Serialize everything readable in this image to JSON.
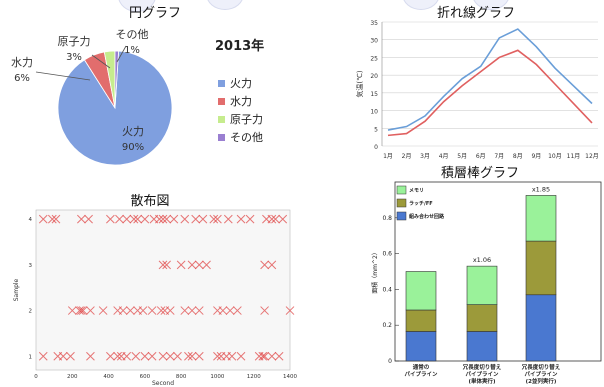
{
  "charts": {
    "pie": {
      "type": "pie",
      "title": "円グラフ",
      "year_label": "2013年",
      "slices": [
        {
          "label": "火力",
          "value": 90,
          "pct_label": "90%",
          "color": "#7f9fdf"
        },
        {
          "label": "水力",
          "value": 6,
          "pct_label": "6%",
          "color": "#e26d6d"
        },
        {
          "label": "原子力",
          "value": 3,
          "pct_label": "3%",
          "color": "#c6ec8e"
        },
        {
          "label": "その他",
          "value": 1,
          "pct_label": "1%",
          "color": "#9a7fd1"
        }
      ]
    },
    "line": {
      "type": "line",
      "title": "折れ線グラフ",
      "ylabel": "気温(℃)",
      "ylim": [
        0,
        35
      ],
      "yticks": [
        0,
        5,
        10,
        15,
        20,
        25,
        30,
        35
      ],
      "categories": [
        "1月",
        "2月",
        "3月",
        "4月",
        "5月",
        "6月",
        "7月",
        "8月",
        "9月",
        "10月",
        "11月",
        "12月"
      ],
      "series": [
        {
          "color": "#6a9ed8",
          "values": [
            4.5,
            5.5,
            8.5,
            14,
            19,
            22.5,
            30.5,
            33,
            28,
            22,
            17,
            12
          ]
        },
        {
          "color": "#e06060",
          "values": [
            3,
            3.5,
            7,
            12.5,
            17,
            21,
            25,
            27,
            23,
            17.5,
            12,
            6.5
          ]
        }
      ]
    },
    "scatter": {
      "type": "scatter",
      "title": "散布図",
      "xlabel": "Second",
      "ylabel": "Sample",
      "xlim": [
        0,
        1400
      ],
      "ylim": [
        0.7,
        4.2
      ],
      "xticks": [
        0,
        200,
        400,
        600,
        800,
        1000,
        1200,
        1400
      ],
      "yticks": [
        1,
        2,
        3,
        4
      ],
      "color": "#e04848",
      "points": [
        [
          40,
          4
        ],
        [
          90,
          4
        ],
        [
          110,
          4
        ],
        [
          250,
          4
        ],
        [
          290,
          4
        ],
        [
          410,
          4
        ],
        [
          460,
          4
        ],
        [
          500,
          4
        ],
        [
          540,
          4
        ],
        [
          560,
          4
        ],
        [
          600,
          4
        ],
        [
          650,
          4
        ],
        [
          680,
          4
        ],
        [
          700,
          4
        ],
        [
          720,
          4
        ],
        [
          760,
          4
        ],
        [
          820,
          4
        ],
        [
          880,
          4
        ],
        [
          920,
          4
        ],
        [
          980,
          4
        ],
        [
          1000,
          4
        ],
        [
          1060,
          4
        ],
        [
          1130,
          4
        ],
        [
          1180,
          4
        ],
        [
          1270,
          4
        ],
        [
          1300,
          4
        ],
        [
          1320,
          4
        ],
        [
          1360,
          4
        ],
        [
          700,
          3
        ],
        [
          720,
          3
        ],
        [
          800,
          3
        ],
        [
          860,
          3
        ],
        [
          900,
          3
        ],
        [
          940,
          3
        ],
        [
          1260,
          3
        ],
        [
          1300,
          3
        ],
        [
          200,
          2
        ],
        [
          240,
          2
        ],
        [
          250,
          2
        ],
        [
          260,
          2
        ],
        [
          300,
          2
        ],
        [
          370,
          2
        ],
        [
          450,
          2
        ],
        [
          480,
          2
        ],
        [
          520,
          2
        ],
        [
          560,
          2
        ],
        [
          590,
          2
        ],
        [
          640,
          2
        ],
        [
          690,
          2
        ],
        [
          710,
          2
        ],
        [
          740,
          2
        ],
        [
          820,
          2
        ],
        [
          860,
          2
        ],
        [
          900,
          2
        ],
        [
          1000,
          2
        ],
        [
          1030,
          2
        ],
        [
          1070,
          2
        ],
        [
          1110,
          2
        ],
        [
          1260,
          2
        ],
        [
          1400,
          2
        ],
        [
          40,
          1
        ],
        [
          120,
          1
        ],
        [
          150,
          1
        ],
        [
          190,
          1
        ],
        [
          300,
          1
        ],
        [
          410,
          1
        ],
        [
          450,
          1
        ],
        [
          470,
          1
        ],
        [
          500,
          1
        ],
        [
          550,
          1
        ],
        [
          600,
          1
        ],
        [
          640,
          1
        ],
        [
          700,
          1
        ],
        [
          740,
          1
        ],
        [
          780,
          1
        ],
        [
          840,
          1
        ],
        [
          860,
          1
        ],
        [
          900,
          1
        ],
        [
          1000,
          1
        ],
        [
          1020,
          1
        ],
        [
          1050,
          1
        ],
        [
          1080,
          1
        ],
        [
          1130,
          1
        ],
        [
          1230,
          1
        ],
        [
          1250,
          1
        ],
        [
          1260,
          1
        ],
        [
          1300,
          1
        ],
        [
          1340,
          1
        ]
      ]
    },
    "stacked": {
      "type": "bar",
      "title": "積層棒グラフ",
      "ylabel": "面積（mm^2）",
      "ylim": [
        0,
        1.0
      ],
      "yticks": [
        0,
        0.2,
        0.4,
        0.6,
        0.8
      ],
      "categories": [
        "通常の\nパイプライン",
        "冗長度切り替え\nパイプライン\n(単体実行)",
        "冗長度切り替え\nパイプライン\n(2並列実行)"
      ],
      "bar_labels": [
        "",
        "x1.06",
        "x1.85"
      ],
      "series": [
        {
          "name": "組み合わせ回路",
          "color": "#4a78d0",
          "values": [
            0.165,
            0.165,
            0.37
          ]
        },
        {
          "name": "ラッチ/FF",
          "color": "#9c9a3a",
          "values": [
            0.12,
            0.15,
            0.3
          ]
        },
        {
          "name": "メモリ",
          "color": "#9af29a",
          "values": [
            0.215,
            0.215,
            0.255
          ]
        }
      ]
    }
  }
}
